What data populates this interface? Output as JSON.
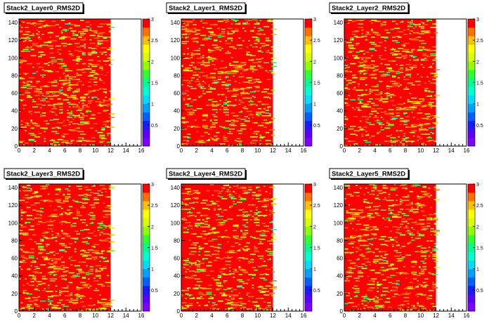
{
  "canvas_title": "",
  "chart_data": [
    {
      "type": "heatmap",
      "title": "Stack2_Layer0_RMS2D",
      "x_range": [
        0,
        16
      ],
      "y_range": [
        0,
        144
      ],
      "x_ticks": [
        "0",
        "2",
        "4",
        "6",
        "8",
        "10",
        "12",
        "14",
        "16"
      ],
      "y_ticks": [
        "0",
        "20",
        "40",
        "60",
        "80",
        "100",
        "120",
        "140"
      ],
      "z_range": [
        0,
        3
      ],
      "z_ticks": [
        "0.5",
        "1",
        "1.5",
        "2",
        "2.5",
        "3"
      ],
      "filled_x_range": [
        0,
        12
      ],
      "background_value": 3,
      "grid": false,
      "legend": "right color palette"
    },
    {
      "type": "heatmap",
      "title": "Stack2_Layer1_RMS2D",
      "x_range": [
        0,
        16
      ],
      "y_range": [
        0,
        144
      ],
      "x_ticks": [
        "0",
        "2",
        "4",
        "6",
        "8",
        "10",
        "12",
        "14",
        "16"
      ],
      "y_ticks": [
        "0",
        "20",
        "40",
        "60",
        "80",
        "100",
        "120",
        "140"
      ],
      "z_range": [
        0,
        3
      ],
      "z_ticks": [
        "0.5",
        "1",
        "1.5",
        "2",
        "2.5",
        "3"
      ],
      "filled_x_range": [
        0,
        12
      ],
      "background_value": 3,
      "grid": false,
      "legend": "right color palette"
    },
    {
      "type": "heatmap",
      "title": "Stack2_Layer2_RMS2D",
      "x_range": [
        0,
        16
      ],
      "y_range": [
        0,
        144
      ],
      "x_ticks": [
        "0",
        "2",
        "4",
        "6",
        "8",
        "10",
        "12",
        "14",
        "16"
      ],
      "y_ticks": [
        "0",
        "20",
        "40",
        "60",
        "80",
        "100",
        "120",
        "140"
      ],
      "z_range": [
        0,
        3
      ],
      "z_ticks": [
        "0.5",
        "1",
        "1.5",
        "2",
        "2.5",
        "3"
      ],
      "filled_x_range": [
        0,
        12
      ],
      "background_value": 3,
      "grid": false,
      "legend": "right color palette"
    },
    {
      "type": "heatmap",
      "title": "Stack2_Layer3_RMS2D",
      "x_range": [
        0,
        16
      ],
      "y_range": [
        0,
        144
      ],
      "x_ticks": [
        "0",
        "2",
        "4",
        "6",
        "8",
        "10",
        "12",
        "14",
        "16"
      ],
      "y_ticks": [
        "0",
        "20",
        "40",
        "60",
        "80",
        "100",
        "120",
        "140"
      ],
      "z_range": [
        0,
        3
      ],
      "z_ticks": [
        "0.5",
        "1",
        "1.5",
        "2",
        "2.5",
        "3"
      ],
      "filled_x_range": [
        0,
        12
      ],
      "background_value": 3,
      "grid": false,
      "legend": "right color palette"
    },
    {
      "type": "heatmap",
      "title": "Stack2_Layer4_RMS2D",
      "x_range": [
        0,
        16
      ],
      "y_range": [
        0,
        144
      ],
      "x_ticks": [
        "0",
        "2",
        "4",
        "6",
        "8",
        "10",
        "12",
        "14",
        "16"
      ],
      "y_ticks": [
        "0",
        "20",
        "40",
        "60",
        "80",
        "100",
        "120",
        "140"
      ],
      "z_range": [
        0,
        3
      ],
      "z_ticks": [
        "0.5",
        "1",
        "1.5",
        "2",
        "2.5",
        "3"
      ],
      "filled_x_range": [
        0,
        12
      ],
      "background_value": 3,
      "grid": false,
      "legend": "right color palette"
    },
    {
      "type": "heatmap",
      "title": "Stack2_Layer5_RMS2D",
      "x_range": [
        0,
        16
      ],
      "y_range": [
        0,
        144
      ],
      "x_ticks": [
        "0",
        "2",
        "4",
        "6",
        "8",
        "10",
        "12",
        "14",
        "16"
      ],
      "y_ticks": [
        "0",
        "20",
        "40",
        "60",
        "80",
        "100",
        "120",
        "140"
      ],
      "z_range": [
        0,
        3
      ],
      "z_ticks": [
        "0.5",
        "1",
        "1.5",
        "2",
        "2.5",
        "3"
      ],
      "filled_x_range": [
        0,
        12
      ],
      "background_value": 3,
      "grid": false,
      "legend": "right color palette"
    }
  ],
  "palette": [
    "#7f00ff",
    "#5a00ff",
    "#1a1aff",
    "#0060ff",
    "#00a0ff",
    "#00dcff",
    "#00ffd0",
    "#00ff90",
    "#30ff30",
    "#90ff00",
    "#d8ff00",
    "#ffff00",
    "#ffc000",
    "#ff7000",
    "#ff0000"
  ],
  "background_color": "#ff0000",
  "axis_color": "#000000"
}
